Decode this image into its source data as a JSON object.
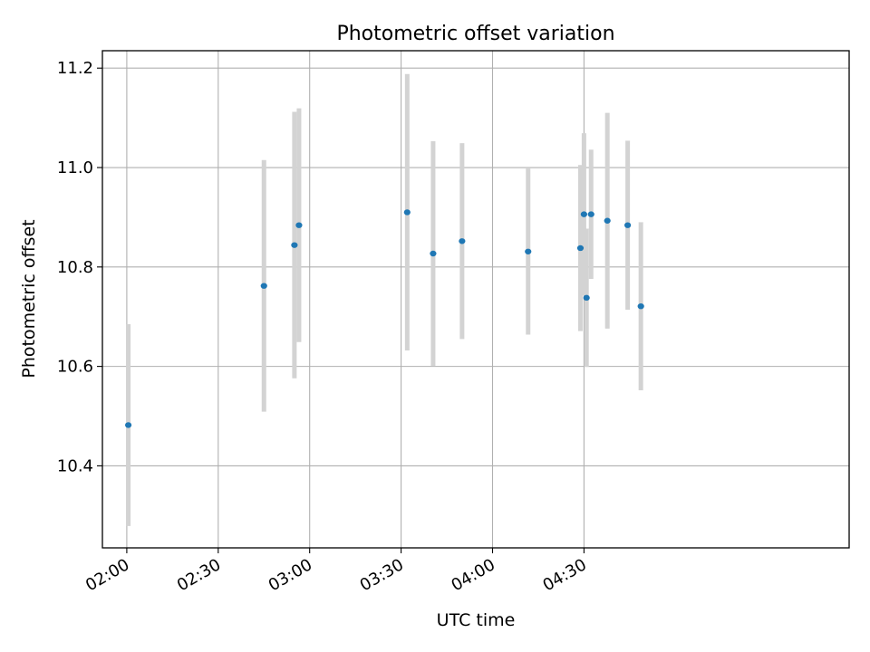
{
  "chart_data": {
    "type": "scatter",
    "title": "Photometric offset variation",
    "xlabel": "UTC time",
    "ylabel": "Photometric offset",
    "x_axis_kind": "time",
    "xlim": [
      "01:52",
      "05:57"
    ],
    "ylim": [
      10.235,
      11.235
    ],
    "grid": true,
    "x_ticks": [
      "02:00",
      "02:30",
      "03:00",
      "03:30",
      "04:00",
      "04:30"
    ],
    "y_ticks": [
      10.4,
      10.6,
      10.8,
      11.0,
      11.2
    ],
    "y_tick_labels": [
      "10.4",
      "10.6",
      "10.8",
      "11.0",
      "11.2"
    ],
    "point_color": "#1f77b4",
    "errorbar_color": "#d3d3d3",
    "series": [
      {
        "points": [
          {
            "x": "02:00:30",
            "y": 10.482,
            "err": 0.203
          },
          {
            "x": "02:45:00",
            "y": 10.762,
            "err": 0.253
          },
          {
            "x": "02:55:00",
            "y": 10.844,
            "err": 0.268
          },
          {
            "x": "02:56:30",
            "y": 10.884,
            "err": 0.235
          },
          {
            "x": "03:32:00",
            "y": 10.91,
            "err": 0.278
          },
          {
            "x": "03:40:30",
            "y": 10.827,
            "err": 0.226
          },
          {
            "x": "03:50:00",
            "y": 10.852,
            "err": 0.197
          },
          {
            "x": "04:11:40",
            "y": 10.831,
            "err": 0.167
          },
          {
            "x": "04:28:50",
            "y": 10.838,
            "err": 0.167
          },
          {
            "x": "04:30:00",
            "y": 10.906,
            "err": 0.163
          },
          {
            "x": "04:30:50",
            "y": 10.738,
            "err": 0.139
          },
          {
            "x": "04:32:20",
            "y": 10.906,
            "err": 0.13
          },
          {
            "x": "04:37:40",
            "y": 10.893,
            "err": 0.217
          },
          {
            "x": "04:44:20",
            "y": 10.884,
            "err": 0.17
          },
          {
            "x": "04:48:40",
            "y": 10.721,
            "err": 0.169
          }
        ]
      }
    ]
  }
}
